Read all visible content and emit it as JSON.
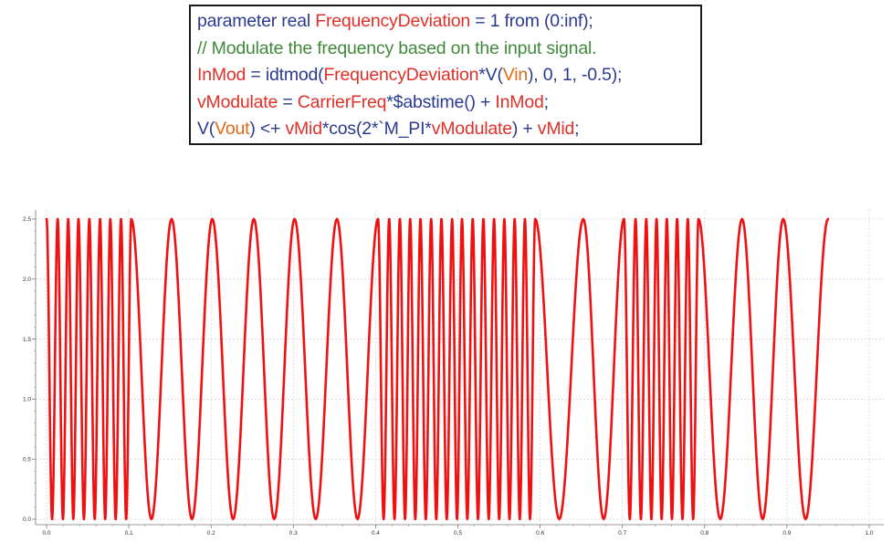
{
  "code": {
    "lines": [
      [
        {
          "t": "parameter real ",
          "c": "kw"
        },
        {
          "t": "FrequencyDeviation",
          "c": "id"
        },
        {
          "t": " = 1 from (0:inf);",
          "c": "kw"
        }
      ],
      [
        {
          "t": "// Modulate the frequency based on the input signal.",
          "c": "cm"
        }
      ],
      [
        {
          "t": "InMod",
          "c": "id"
        },
        {
          "t": " = idtmod(",
          "c": "kw"
        },
        {
          "t": "FrequencyDeviation",
          "c": "id"
        },
        {
          "t": "*V(",
          "c": "kw"
        },
        {
          "t": "Vin",
          "c": "pn"
        },
        {
          "t": "), 0, 1, -0.5);",
          "c": "kw"
        }
      ],
      [
        {
          "t": "vModulate",
          "c": "id"
        },
        {
          "t": " = ",
          "c": "kw"
        },
        {
          "t": "CarrierFreq",
          "c": "id"
        },
        {
          "t": "*$abstime() + ",
          "c": "kw"
        },
        {
          "t": "InMod",
          "c": "id"
        },
        {
          "t": ";",
          "c": "kw"
        }
      ],
      [
        {
          "t": "V(",
          "c": "kw"
        },
        {
          "t": "Vout",
          "c": "pn"
        },
        {
          "t": ") <+ ",
          "c": "kw"
        },
        {
          "t": "vMid",
          "c": "id"
        },
        {
          "t": "*cos(2*`M_PI*",
          "c": "kw"
        },
        {
          "t": "vModulate",
          "c": "id"
        },
        {
          "t": ") + ",
          "c": "kw"
        },
        {
          "t": "vMid",
          "c": "id"
        },
        {
          "t": ";",
          "c": "kw"
        }
      ]
    ]
  },
  "colors": {
    "keyword": "#2b3a8f",
    "identifier": "#e03028",
    "port": "#e06a18",
    "comment": "#3f8a3a",
    "trace": "#ee1111",
    "grid": "#c8c8c8"
  },
  "chart_data": {
    "type": "line",
    "title": "",
    "xlabel": "",
    "ylabel": "",
    "xlim": [
      0.0,
      1.0
    ],
    "ylim": [
      0.0,
      2.5
    ],
    "grid": true,
    "x_ticks": [
      "0.0",
      "0.1",
      "0.2",
      "0.3",
      "0.4",
      "0.5",
      "0.6",
      "0.7",
      "0.8",
      "0.9",
      "1.0"
    ],
    "y_ticks": [
      "0.0",
      "0.5",
      "1.0",
      "1.5",
      "2.0",
      "2.5"
    ],
    "series": [
      {
        "color": "#ee1111",
        "description_points": "peak times of the FSK-modulated cosine (y oscillates 0 to 2.5)",
        "peaks_x": [
          0.0,
          0.0135,
          0.0263,
          0.0388,
          0.052,
          0.065,
          0.0775,
          0.0905,
          0.103,
          0.152,
          0.2015,
          0.252,
          0.3015,
          0.353,
          0.403,
          0.4165,
          0.4295,
          0.442,
          0.4545,
          0.4675,
          0.48,
          0.493,
          0.505,
          0.518,
          0.531,
          0.544,
          0.5565,
          0.569,
          0.5815,
          0.594,
          0.6525,
          0.702,
          0.716,
          0.729,
          0.7415,
          0.754,
          0.7665,
          0.7795,
          0.7925,
          0.8455,
          0.8955,
          0.95
        ],
        "y_min": 0.0,
        "y_max": 2.5
      }
    ]
  }
}
